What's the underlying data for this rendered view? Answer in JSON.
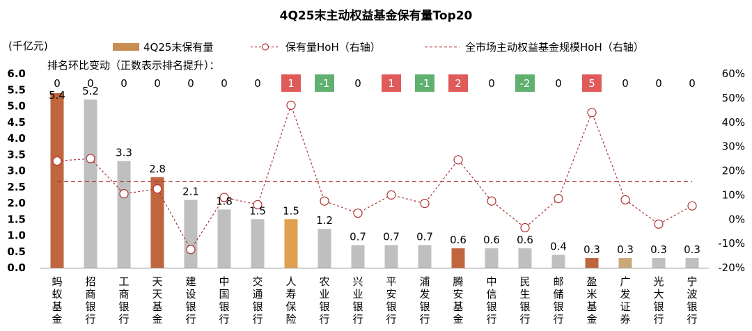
{
  "chart_data": {
    "type": "bar",
    "title": "4Q25末主动权益基金保有量Top20",
    "ylabel_left": "(千亿元)",
    "rank_change_label": "排名环比变动（正数表示排名提升）：",
    "categories": [
      "蚂蚁基金",
      "招商银行",
      "工商银行",
      "天天基金",
      "建设银行",
      "中国银行",
      "交通银行",
      "人寿保险",
      "农业银行",
      "兴业银行",
      "平安银行",
      "浦发银行",
      "腾安基金",
      "中信银行",
      "民生银行",
      "邮储银行",
      "盈米基金",
      "广发证券",
      "光大银行",
      "宁波银行"
    ],
    "series": [
      {
        "name": "4Q25末保有量",
        "type": "bar",
        "axis": "left",
        "values": [
          5.4,
          5.2,
          3.3,
          2.8,
          2.1,
          1.8,
          1.5,
          1.5,
          1.2,
          0.7,
          0.7,
          0.7,
          0.6,
          0.6,
          0.6,
          0.4,
          0.3,
          0.3,
          0.3,
          0.3
        ],
        "labels": [
          "5.4",
          "5.2",
          "3.3",
          "2.8",
          "2.1",
          "1.8",
          "1.5",
          "1.5",
          "1.2",
          "0.7",
          "0.7",
          "0.7",
          "0.6",
          "0.6",
          "0.6",
          "0.4",
          "0.3",
          "0.3",
          "0.3",
          "0.3"
        ]
      },
      {
        "name": "保有量HoH（右轴）",
        "type": "line",
        "axis": "right",
        "values": [
          24,
          25,
          10.5,
          12.5,
          -12.5,
          9,
          6,
          47,
          7.5,
          2.5,
          10,
          6.5,
          24.5,
          7.5,
          -3.5,
          8.5,
          44,
          8,
          -2,
          5.5
        ]
      },
      {
        "name": "全市场主动权益基金规模HoH（右轴）",
        "type": "reference-line",
        "axis": "right",
        "value": 15.5
      }
    ],
    "rank_changes": [
      "0",
      "0",
      "0",
      "0",
      "0",
      "0",
      "0",
      "1",
      "-1",
      "0",
      "1",
      "-1",
      "2",
      "0",
      "-2",
      "0",
      "5",
      "0",
      "0",
      "0"
    ],
    "y_left": {
      "min": 0,
      "max": 6,
      "ticks": [
        "0.0",
        "0.5",
        "1.0",
        "1.5",
        "2.0",
        "2.5",
        "3.0",
        "3.5",
        "4.0",
        "4.5",
        "5.0",
        "5.5",
        "6.0"
      ]
    },
    "y_right": {
      "min": -20,
      "max": 60,
      "ticks": [
        "-20%",
        "-10%",
        "0%",
        "10%",
        "20%",
        "30%",
        "40%",
        "50%",
        "60%"
      ]
    },
    "legend_position": "top",
    "colors": {
      "bar_fund": "#c0663f",
      "bar_bank": "#bfbfbf",
      "bar_insurance": "#e0a050",
      "bar_securities": "#c9a97a",
      "legend_bar": "#c98d52",
      "line": "#b03030",
      "rank_up": "#e05a5a",
      "rank_down": "#60b070"
    },
    "bar_color_keys": [
      "bar_fund",
      "bar_bank",
      "bar_bank",
      "bar_fund",
      "bar_bank",
      "bar_bank",
      "bar_bank",
      "bar_insurance",
      "bar_bank",
      "bar_bank",
      "bar_bank",
      "bar_bank",
      "bar_fund",
      "bar_bank",
      "bar_bank",
      "bar_bank",
      "bar_fund",
      "bar_securities",
      "bar_bank",
      "bar_bank"
    ]
  }
}
